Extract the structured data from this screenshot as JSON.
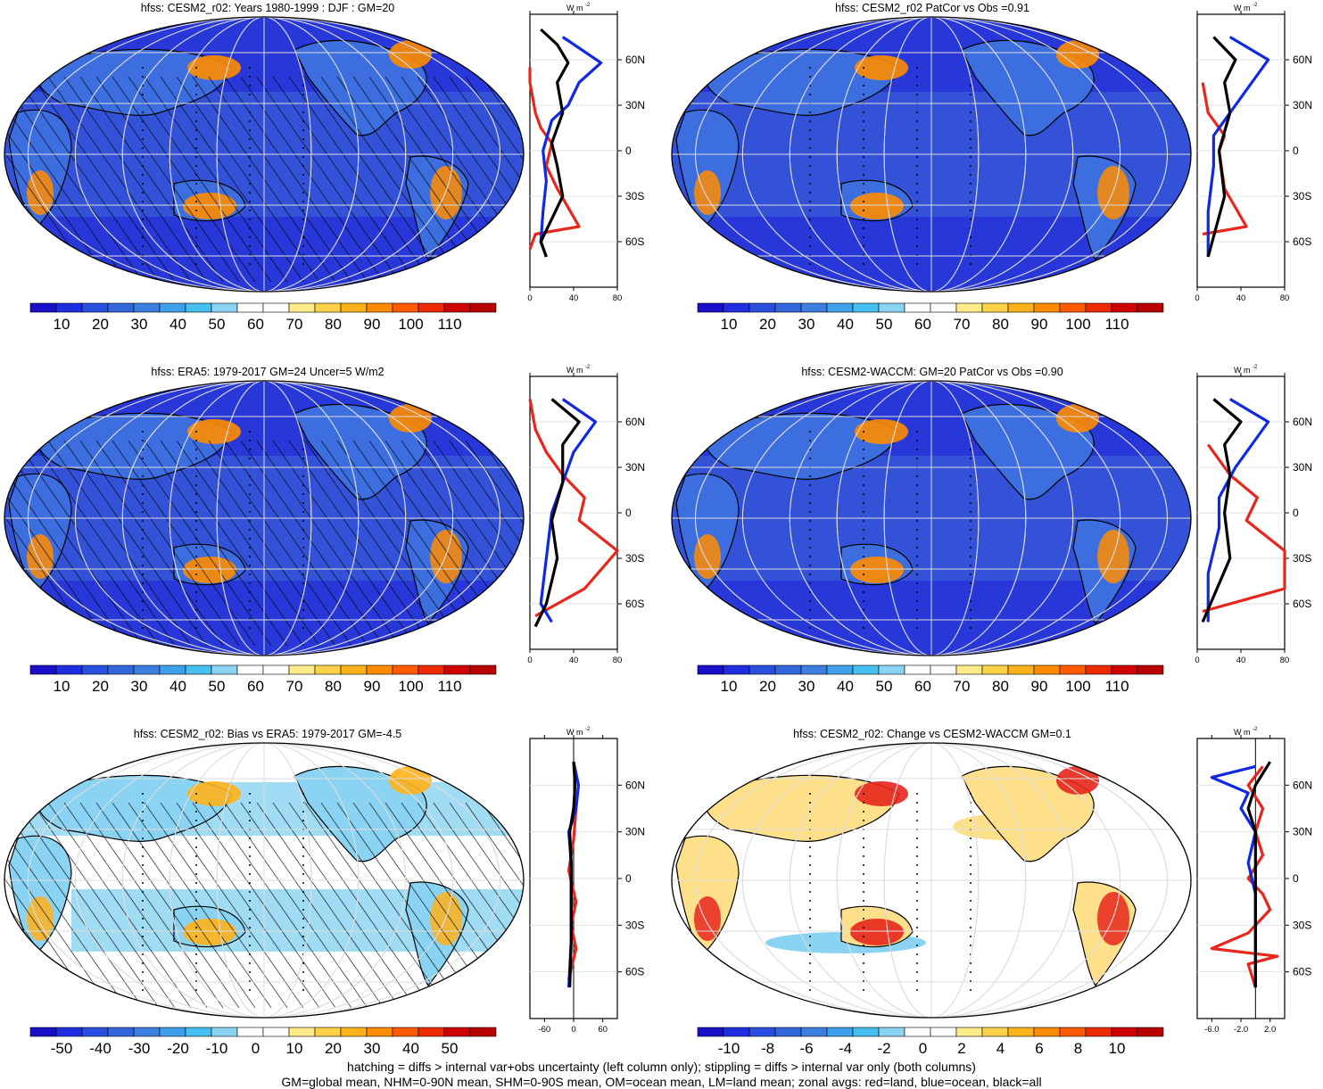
{
  "panels": [
    {
      "title": "hfss: CESM2_r02: Years 1980-1999 : DJF : GM=20",
      "kind": "abs",
      "hatch": true
    },
    {
      "title": "hfss: CESM2_r02 PatCor vs Obs =0.91",
      "kind": "abs",
      "hatch": false
    },
    {
      "title": "hfss: ERA5: 1979-2017 GM=24 Uncer=5 W/m2",
      "kind": "abs",
      "hatch": true
    },
    {
      "title": "hfss: CESM2-WACCM: GM=20 PatCor vs Obs =0.90",
      "kind": "abs",
      "hatch": false
    },
    {
      "title": "hfss: CESM2_r02: Bias vs ERA5: 1979-2017 GM=-4.5",
      "kind": "bias",
      "hatch": true
    },
    {
      "title": "hfss: CESM2_r02: Change vs CESM2-WACCM GM=0.1",
      "kind": "change",
      "hatch": false
    }
  ],
  "colorbars": {
    "abs": {
      "labels": [
        "10",
        "20",
        "30",
        "40",
        "50",
        "60",
        "70",
        "80",
        "90",
        "100",
        "110"
      ]
    },
    "bias": {
      "labels": [
        "-50",
        "-40",
        "-30",
        "-20",
        "-10",
        "0",
        "10",
        "20",
        "30",
        "40",
        "50"
      ]
    },
    "change": {
      "labels": [
        "-10",
        "-8",
        "-6",
        "-4",
        "-2",
        "0",
        "2",
        "4",
        "6",
        "8",
        "10"
      ]
    }
  },
  "colors": {
    "cold": [
      "#1a0fc8",
      "#1e2ee0",
      "#2a4fe0",
      "#3366dd",
      "#3c7fe0",
      "#3ea0ea",
      "#46c0f0",
      "#8ad3f3",
      "#ffffff",
      "#ffffff",
      "#ffeb8a",
      "#ffd24a",
      "#ffb21a",
      "#ff8c00",
      "#ff5a00",
      "#ee2a00",
      "#d10000",
      "#b80000"
    ],
    "land_red": "#e8261c",
    "ocean_blue": "#1028e0",
    "all_black": "#000000"
  },
  "zonal": {
    "unit": "W m",
    "unit_exp": "-2",
    "lat_labels": [
      "60N",
      "30N",
      "0",
      "30S",
      "60S"
    ],
    "xticks_abs": [
      "0",
      "40",
      "80"
    ],
    "xticks_bias": [
      "-60",
      "0",
      "60"
    ],
    "xticks_change": [
      "-6.0",
      "-2.0",
      "2.0"
    ]
  },
  "chart_data": [
    {
      "type": "line",
      "title": "hfss: CESM2_r02: Years 1980-1999 : DJF : GM=20",
      "xlabel": "W m-2",
      "xlim": [
        0,
        80
      ],
      "series": [
        {
          "name": "red=land",
          "values": [
            [
              0,
              -65
            ],
            [
              5,
              -55
            ],
            [
              45,
              -50
            ],
            [
              25,
              -25
            ],
            [
              15,
              -10
            ],
            [
              20,
              5
            ],
            [
              10,
              15
            ],
            [
              5,
              25
            ],
            [
              0,
              45
            ],
            [
              0,
              55
            ]
          ]
        },
        {
          "name": "blue=ocean",
          "values": [
            [
              15,
              -70
            ],
            [
              10,
              -60
            ],
            [
              12,
              -40
            ],
            [
              15,
              -20
            ],
            [
              12,
              0
            ],
            [
              20,
              20
            ],
            [
              35,
              30
            ],
            [
              45,
              45
            ],
            [
              65,
              58
            ],
            [
              30,
              75
            ]
          ]
        },
        {
          "name": "black=all",
          "values": [
            [
              15,
              -70
            ],
            [
              10,
              -60
            ],
            [
              30,
              -30
            ],
            [
              25,
              -10
            ],
            [
              20,
              5
            ],
            [
              30,
              25
            ],
            [
              25,
              45
            ],
            [
              35,
              58
            ],
            [
              25,
              70
            ],
            [
              10,
              80
            ]
          ]
        }
      ]
    },
    {
      "type": "line",
      "title": "hfss: CESM2_r02 PatCor vs Obs =0.91",
      "xlabel": "W m-2",
      "xlim": [
        0,
        80
      ],
      "series": [
        {
          "name": "red=land",
          "values": [
            [
              5,
              -55
            ],
            [
              45,
              -50
            ],
            [
              25,
              -25
            ],
            [
              20,
              0
            ],
            [
              25,
              10
            ],
            [
              10,
              25
            ],
            [
              5,
              45
            ]
          ]
        },
        {
          "name": "blue=ocean",
          "values": [
            [
              10,
              -70
            ],
            [
              10,
              -40
            ],
            [
              15,
              -10
            ],
            [
              15,
              10
            ],
            [
              35,
              30
            ],
            [
              50,
              45
            ],
            [
              65,
              60
            ],
            [
              30,
              75
            ]
          ]
        },
        {
          "name": "black=all",
          "values": [
            [
              10,
              -70
            ],
            [
              25,
              -30
            ],
            [
              20,
              0
            ],
            [
              30,
              25
            ],
            [
              25,
              45
            ],
            [
              35,
              60
            ],
            [
              15,
              75
            ]
          ]
        }
      ]
    },
    {
      "type": "line",
      "title": "hfss: ERA5: 1979-2017 GM=24 Uncer=5 W/m2",
      "xlabel": "W m-2",
      "xlim": [
        0,
        80
      ],
      "series": [
        {
          "name": "red=land",
          "values": [
            [
              5,
              -68
            ],
            [
              50,
              -50
            ],
            [
              80,
              -25
            ],
            [
              45,
              -5
            ],
            [
              50,
              10
            ],
            [
              30,
              25
            ],
            [
              15,
              40
            ],
            [
              5,
              55
            ],
            [
              0,
              75
            ]
          ]
        },
        {
          "name": "blue=ocean",
          "values": [
            [
              20,
              -72
            ],
            [
              10,
              -60
            ],
            [
              15,
              -30
            ],
            [
              20,
              0
            ],
            [
              30,
              20
            ],
            [
              40,
              40
            ],
            [
              60,
              60
            ],
            [
              30,
              75
            ]
          ]
        },
        {
          "name": "black=all",
          "values": [
            [
              5,
              -75
            ],
            [
              15,
              -60
            ],
            [
              25,
              -30
            ],
            [
              20,
              -5
            ],
            [
              30,
              20
            ],
            [
              30,
              45
            ],
            [
              45,
              60
            ],
            [
              20,
              75
            ]
          ]
        }
      ]
    },
    {
      "type": "line",
      "title": "hfss: CESM2-WACCM: GM=20 PatCor vs Obs =0.90",
      "xlabel": "W m-2",
      "xlim": [
        0,
        80
      ],
      "series": [
        {
          "name": "red=land",
          "values": [
            [
              5,
              -65
            ],
            [
              80,
              -50
            ],
            [
              80,
              -25
            ],
            [
              45,
              -5
            ],
            [
              55,
              10
            ],
            [
              30,
              25
            ],
            [
              10,
              45
            ]
          ]
        },
        {
          "name": "blue=ocean",
          "values": [
            [
              10,
              -72
            ],
            [
              10,
              -40
            ],
            [
              20,
              -10
            ],
            [
              20,
              10
            ],
            [
              35,
              30
            ],
            [
              50,
              45
            ],
            [
              65,
              60
            ],
            [
              30,
              75
            ]
          ]
        },
        {
          "name": "black=all",
          "values": [
            [
              5,
              -72
            ],
            [
              30,
              -30
            ],
            [
              25,
              0
            ],
            [
              30,
              25
            ],
            [
              25,
              45
            ],
            [
              40,
              60
            ],
            [
              15,
              75
            ]
          ]
        }
      ]
    },
    {
      "type": "line",
      "title": "hfss: CESM2_r02: Bias vs ERA5: 1979-2017 GM=-4.5",
      "xlabel": "W m-2",
      "xlim": [
        -90,
        90
      ],
      "series": [
        {
          "name": "red=land",
          "values": [
            [
              -10,
              -65
            ],
            [
              5,
              -45
            ],
            [
              -5,
              -30
            ],
            [
              5,
              -15
            ],
            [
              -10,
              5
            ],
            [
              0,
              25
            ],
            [
              5,
              45
            ]
          ]
        },
        {
          "name": "blue=ocean",
          "values": [
            [
              -10,
              -70
            ],
            [
              -5,
              -40
            ],
            [
              -5,
              -10
            ],
            [
              -5,
              10
            ],
            [
              -10,
              30
            ],
            [
              5,
              45
            ],
            [
              10,
              60
            ],
            [
              0,
              75
            ]
          ]
        },
        {
          "name": "black=all",
          "values": [
            [
              -8,
              -70
            ],
            [
              -5,
              -40
            ],
            [
              -5,
              -10
            ],
            [
              -5,
              10
            ],
            [
              -8,
              30
            ],
            [
              0,
              45
            ],
            [
              3,
              60
            ],
            [
              0,
              75
            ]
          ]
        }
      ]
    },
    {
      "type": "line",
      "title": "hfss: CESM2_r02: Change vs CESM2-WACCM GM=0.1",
      "xlabel": "W m-2",
      "xlim": [
        -8,
        4
      ],
      "series": [
        {
          "name": "red=land",
          "values": [
            [
              0,
              -70
            ],
            [
              -1,
              -55
            ],
            [
              3,
              -50
            ],
            [
              -6,
              -45
            ],
            [
              -1,
              -35
            ],
            [
              2,
              -20
            ],
            [
              1,
              -10
            ],
            [
              -1,
              0
            ],
            [
              1,
              15
            ],
            [
              0,
              30
            ],
            [
              1,
              45
            ],
            [
              -1,
              60
            ],
            [
              1,
              72
            ]
          ]
        },
        {
          "name": "blue=ocean",
          "values": [
            [
              0,
              -70
            ],
            [
              0,
              -40
            ],
            [
              0,
              -10
            ],
            [
              -1,
              10
            ],
            [
              0,
              30
            ],
            [
              -2,
              45
            ],
            [
              -1,
              55
            ],
            [
              -6,
              65
            ],
            [
              0,
              72
            ]
          ]
        },
        {
          "name": "black=all",
          "values": [
            [
              0,
              -70
            ],
            [
              0,
              -40
            ],
            [
              0,
              -10
            ],
            [
              0,
              10
            ],
            [
              0,
              30
            ],
            [
              -1,
              45
            ],
            [
              0,
              60
            ],
            [
              2,
              75
            ]
          ]
        }
      ]
    }
  ],
  "footer": {
    "line1": "hatching = diffs > internal var+obs uncertainty (left column only); stippling = diffs > internal var only (both columns)",
    "line2": "GM=global mean, NHM=0-90N mean, SHM=0-90S mean, OM=ocean mean, LM=land mean; zonal avgs: red=land, blue=ocean, black=all"
  }
}
